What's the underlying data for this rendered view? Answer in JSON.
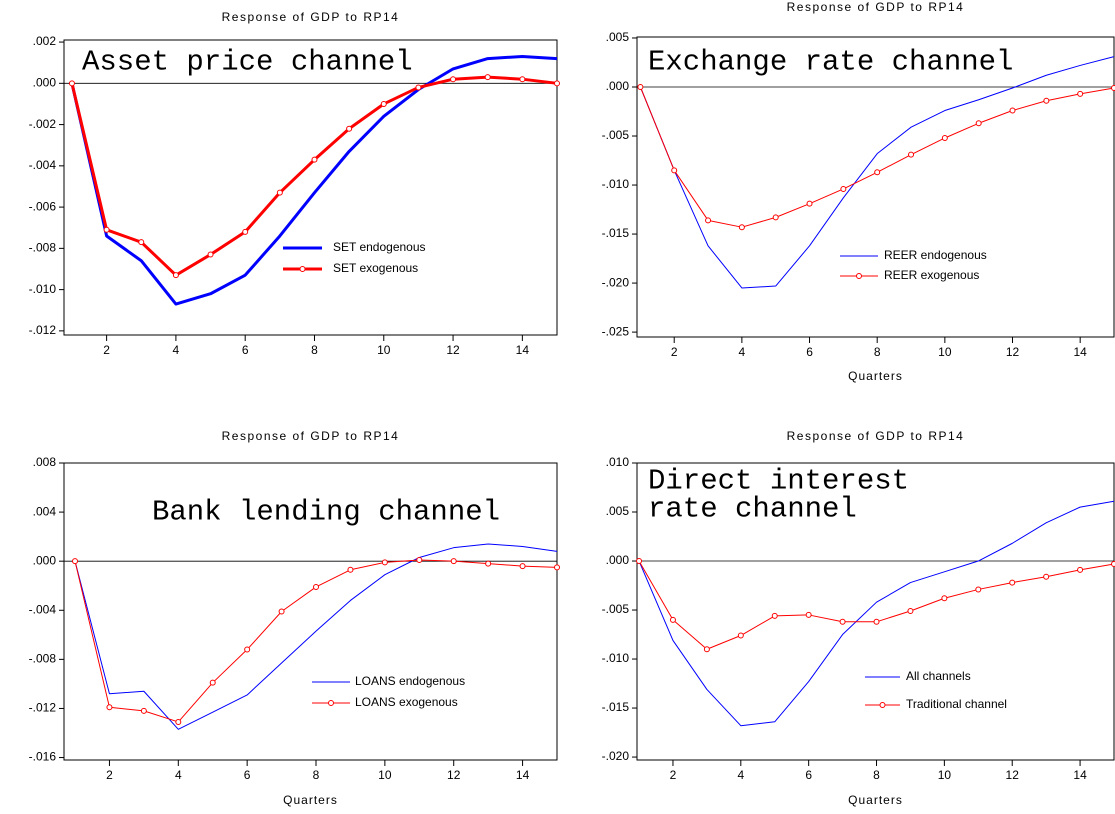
{
  "chart_data": [
    {
      "type": "line",
      "title": "Response of GDP to RP14",
      "annotation": [
        "Asset price channel"
      ],
      "x": [
        1,
        2,
        3,
        4,
        5,
        6,
        7,
        8,
        9,
        10,
        11,
        12,
        13,
        14,
        15
      ],
      "xlim": [
        0.77,
        15
      ],
      "xticks": [
        2,
        4,
        6,
        8,
        10,
        12,
        14
      ],
      "ylim": [
        -0.0122,
        0.0021
      ],
      "yticks": [
        {
          "value": 0.002,
          "label": ".002"
        },
        {
          "value": 0,
          "label": ".000"
        },
        {
          "value": -0.002,
          "label": "-.002"
        },
        {
          "value": -0.004,
          "label": "-.004"
        },
        {
          "value": -0.006,
          "label": "-.006"
        },
        {
          "value": -0.008,
          "label": "-.008"
        },
        {
          "value": -0.01,
          "label": "-.010"
        },
        {
          "value": -0.012,
          "label": "-.012"
        }
      ],
      "series": [
        {
          "name": "SET endogenous",
          "color": "#0000ff",
          "line_width": 3,
          "marker": false,
          "values": [
            0,
            -0.0074,
            -0.0086,
            -0.0107,
            -0.0102,
            -0.0093,
            -0.0074,
            -0.0053,
            -0.0033,
            -0.0016,
            -0.0003,
            0.0007,
            0.0012,
            0.0013,
            0.0012
          ]
        },
        {
          "name": "SET exogenous",
          "color": "#ff0000",
          "line_width": 3,
          "marker": true,
          "values": [
            0,
            -0.0071,
            -0.0077,
            -0.0093,
            -0.0083,
            -0.0072,
            -0.0053,
            -0.0037,
            -0.0022,
            -0.001,
            -0.0002,
            0.0002,
            0.0003,
            0.0002,
            0
          ]
        }
      ]
    },
    {
      "type": "line",
      "title": "Response of GDP to RP14",
      "annotation": [
        "Exchange rate channel"
      ],
      "xlabel": "Quarters",
      "x": [
        1,
        2,
        3,
        4,
        5,
        6,
        7,
        8,
        9,
        10,
        11,
        12,
        13,
        14,
        15
      ],
      "xlim": [
        0.9,
        15
      ],
      "xticks": [
        2,
        4,
        6,
        8,
        10,
        12,
        14
      ],
      "ylim": [
        -0.0255,
        0.0051
      ],
      "yticks": [
        {
          "value": 0.005,
          "label": ".005"
        },
        {
          "value": 0,
          "label": ".000"
        },
        {
          "value": -0.005,
          "label": "-.005"
        },
        {
          "value": -0.01,
          "label": "-.010"
        },
        {
          "value": -0.015,
          "label": "-.015"
        },
        {
          "value": -0.02,
          "label": "-.020"
        },
        {
          "value": -0.025,
          "label": "-.025"
        }
      ],
      "series": [
        {
          "name": "REER endogenous",
          "color": "#0000ff",
          "line_width": 1,
          "marker": false,
          "values": [
            0,
            -0.0085,
            -0.0162,
            -0.0205,
            -0.0203,
            -0.0162,
            -0.0113,
            -0.0068,
            -0.0041,
            -0.0024,
            -0.0013,
            -0.0001,
            0.0012,
            0.0022,
            0.0031
          ]
        },
        {
          "name": "REER exogenous",
          "color": "#ff0000",
          "line_width": 1,
          "marker": true,
          "values": [
            0,
            -0.0085,
            -0.0136,
            -0.0143,
            -0.0133,
            -0.0119,
            -0.0104,
            -0.0087,
            -0.0069,
            -0.0052,
            -0.0037,
            -0.0024,
            -0.0014,
            -0.0007,
            -0.0001
          ]
        }
      ]
    },
    {
      "type": "line",
      "title": "Response of GDP to RP14",
      "annotation": [
        "Bank lending channel"
      ],
      "xlabel": "Quarters",
      "x": [
        1,
        2,
        3,
        4,
        5,
        6,
        7,
        8,
        9,
        10,
        11,
        12,
        13,
        14,
        15
      ],
      "xlim": [
        0.68,
        15
      ],
      "xticks": [
        2,
        4,
        6,
        8,
        10,
        12,
        14
      ],
      "ylim": [
        -0.0162,
        0.008
      ],
      "yticks": [
        {
          "value": 0.008,
          "label": ".008"
        },
        {
          "value": 0.004,
          "label": ".004"
        },
        {
          "value": 0,
          "label": ".000"
        },
        {
          "value": -0.004,
          "label": "-.004"
        },
        {
          "value": -0.008,
          "label": "-.008"
        },
        {
          "value": -0.012,
          "label": "-.012"
        },
        {
          "value": -0.016,
          "label": "-.016"
        }
      ],
      "series": [
        {
          "name": "LOANS endogenous",
          "color": "#0000ff",
          "line_width": 1,
          "marker": false,
          "values": [
            0,
            -0.0108,
            -0.0106,
            -0.0137,
            -0.0123,
            -0.0109,
            -0.0083,
            -0.0057,
            -0.0032,
            -0.0011,
            0.0003,
            0.0011,
            0.0014,
            0.0012,
            0.0008
          ]
        },
        {
          "name": "LOANS exogenous",
          "color": "#ff0000",
          "line_width": 1,
          "marker": true,
          "values": [
            0,
            -0.0119,
            -0.0122,
            -0.0131,
            -0.0099,
            -0.0072,
            -0.0041,
            -0.0021,
            -0.0007,
            -0.0001,
            0.0001,
            0,
            -0.0002,
            -0.0004,
            -0.0005
          ]
        }
      ]
    },
    {
      "type": "line",
      "title": "Response of GDP to RP14",
      "annotation": [
        "Direct interest",
        "rate channel"
      ],
      "xlabel": "Quarters",
      "x": [
        1,
        2,
        3,
        4,
        5,
        6,
        7,
        8,
        9,
        10,
        11,
        12,
        13,
        14,
        15
      ],
      "xlim": [
        0.94,
        15
      ],
      "xticks": [
        2,
        4,
        6,
        8,
        10,
        12,
        14
      ],
      "ylim": [
        -0.0203,
        0.01
      ],
      "yticks": [
        {
          "value": 0.01,
          "label": ".010"
        },
        {
          "value": 0.005,
          "label": ".005"
        },
        {
          "value": 0,
          "label": ".000"
        },
        {
          "value": -0.005,
          "label": "-.005"
        },
        {
          "value": -0.01,
          "label": "-.010"
        },
        {
          "value": -0.015,
          "label": "-.015"
        },
        {
          "value": -0.02,
          "label": "-.020"
        }
      ],
      "series": [
        {
          "name": "All channels",
          "color": "#0000ff",
          "line_width": 1,
          "marker": false,
          "values": [
            0,
            -0.0081,
            -0.0131,
            -0.0168,
            -0.0164,
            -0.0123,
            -0.0075,
            -0.0042,
            -0.0022,
            -0.0011,
            0,
            0.0018,
            0.0039,
            0.0055,
            0.0061
          ]
        },
        {
          "name": "Traditional channel",
          "color": "#ff0000",
          "line_width": 1,
          "marker": true,
          "values": [
            0,
            -0.006,
            -0.009,
            -0.0076,
            -0.0056,
            -0.0055,
            -0.0062,
            -0.0062,
            -0.0051,
            -0.0038,
            -0.0029,
            -0.0022,
            -0.0016,
            -0.0009,
            -0.0003
          ]
        }
      ]
    }
  ]
}
